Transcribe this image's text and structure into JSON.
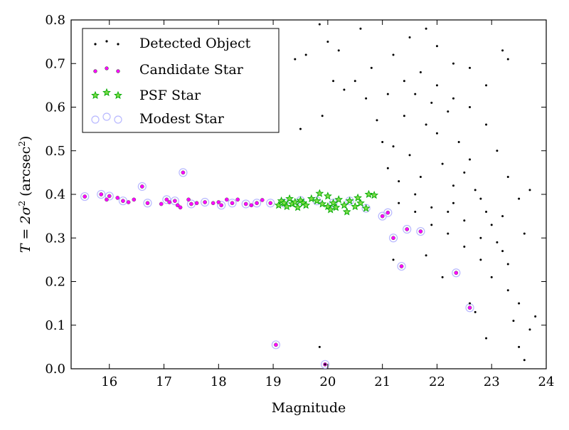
{
  "chart_data": {
    "type": "scatter",
    "xlabel": "Magnitude",
    "ylabel_prefix": "T = 2σ",
    "ylabel_sup": "2",
    "ylabel_open": " (arcsec",
    "ylabel_unit_sup": "2",
    "ylabel_close": ")",
    "xlim": [
      15.3,
      24.0
    ],
    "ylim": [
      0.0,
      0.8
    ],
    "x_ticks": [
      16,
      17,
      18,
      19,
      20,
      21,
      22,
      23,
      24
    ],
    "x_tick_labels": [
      "16",
      "17",
      "18",
      "19",
      "20",
      "21",
      "22",
      "23",
      "24"
    ],
    "y_ticks": [
      0.0,
      0.1,
      0.2,
      0.3,
      0.4,
      0.5,
      0.6,
      0.7,
      0.8
    ],
    "y_tick_labels": [
      "0.0",
      "0.1",
      "0.2",
      "0.3",
      "0.4",
      "0.5",
      "0.6",
      "0.7",
      "0.8"
    ],
    "grid": false,
    "legend_position": "top-left",
    "colors": {
      "detected": "#000000",
      "candidate": "#ff00ff",
      "psf": "#00aa00",
      "modest": "#b8b8ff"
    },
    "series": [
      {
        "name": "Detected Object",
        "marker": "dot",
        "points": [
          [
            19.85,
            0.79
          ],
          [
            20.0,
            0.75
          ],
          [
            20.2,
            0.73
          ],
          [
            19.6,
            0.72
          ],
          [
            19.4,
            0.71
          ],
          [
            20.1,
            0.66
          ],
          [
            19.9,
            0.58
          ],
          [
            19.5,
            0.55
          ],
          [
            20.3,
            0.64
          ],
          [
            20.6,
            0.78
          ],
          [
            20.8,
            0.69
          ],
          [
            20.7,
            0.62
          ],
          [
            20.9,
            0.57
          ],
          [
            20.5,
            0.66
          ],
          [
            19.85,
            0.05
          ],
          [
            19.95,
            0.01
          ],
          [
            21.0,
            0.52
          ],
          [
            21.1,
            0.46
          ],
          [
            21.2,
            0.51
          ],
          [
            21.3,
            0.43
          ],
          [
            21.4,
            0.58
          ],
          [
            21.5,
            0.49
          ],
          [
            21.6,
            0.63
          ],
          [
            21.7,
            0.44
          ],
          [
            21.8,
            0.56
          ],
          [
            21.9,
            0.61
          ],
          [
            22.0,
            0.54
          ],
          [
            22.1,
            0.47
          ],
          [
            22.2,
            0.59
          ],
          [
            22.3,
            0.42
          ],
          [
            22.4,
            0.52
          ],
          [
            22.5,
            0.45
          ],
          [
            22.6,
            0.48
          ],
          [
            22.7,
            0.41
          ],
          [
            22.8,
            0.39
          ],
          [
            22.9,
            0.36
          ],
          [
            23.0,
            0.33
          ],
          [
            23.1,
            0.29
          ],
          [
            23.2,
            0.27
          ],
          [
            23.3,
            0.24
          ],
          [
            21.2,
            0.72
          ],
          [
            21.5,
            0.76
          ],
          [
            21.8,
            0.78
          ],
          [
            22.0,
            0.74
          ],
          [
            22.3,
            0.7
          ],
          [
            22.6,
            0.69
          ],
          [
            22.9,
            0.65
          ],
          [
            23.2,
            0.73
          ],
          [
            23.3,
            0.71
          ],
          [
            21.6,
            0.36
          ],
          [
            21.9,
            0.33
          ],
          [
            22.2,
            0.31
          ],
          [
            22.5,
            0.28
          ],
          [
            22.8,
            0.25
          ],
          [
            23.0,
            0.21
          ],
          [
            23.3,
            0.18
          ],
          [
            23.5,
            0.15
          ],
          [
            23.4,
            0.11
          ],
          [
            23.6,
            0.02
          ],
          [
            23.5,
            0.05
          ],
          [
            22.9,
            0.07
          ],
          [
            23.8,
            0.12
          ],
          [
            23.7,
            0.09
          ],
          [
            22.7,
            0.13
          ],
          [
            21.3,
            0.38
          ],
          [
            21.6,
            0.4
          ],
          [
            21.9,
            0.37
          ],
          [
            22.2,
            0.36
          ],
          [
            22.5,
            0.34
          ],
          [
            22.8,
            0.3
          ],
          [
            21.1,
            0.63
          ],
          [
            21.4,
            0.66
          ],
          [
            21.7,
            0.68
          ],
          [
            22.0,
            0.65
          ],
          [
            22.3,
            0.62
          ],
          [
            22.6,
            0.6
          ],
          [
            22.9,
            0.56
          ],
          [
            23.1,
            0.5
          ],
          [
            23.3,
            0.44
          ],
          [
            23.5,
            0.39
          ],
          [
            23.6,
            0.31
          ],
          [
            23.7,
            0.41
          ],
          [
            21.2,
            0.25
          ],
          [
            22.1,
            0.21
          ],
          [
            22.3,
            0.38
          ],
          [
            21.8,
            0.26
          ],
          [
            23.2,
            0.35
          ],
          [
            22.6,
            0.15
          ]
        ]
      },
      {
        "name": "Candidate Star",
        "marker": "circle",
        "points": [
          [
            15.55,
            0.395
          ],
          [
            15.85,
            0.4
          ],
          [
            15.95,
            0.388
          ],
          [
            16.0,
            0.396
          ],
          [
            16.15,
            0.392
          ],
          [
            16.25,
            0.385
          ],
          [
            16.35,
            0.382
          ],
          [
            16.45,
            0.388
          ],
          [
            16.6,
            0.418
          ],
          [
            16.7,
            0.38
          ],
          [
            16.95,
            0.378
          ],
          [
            17.05,
            0.388
          ],
          [
            17.1,
            0.382
          ],
          [
            17.2,
            0.385
          ],
          [
            17.25,
            0.375
          ],
          [
            17.3,
            0.37
          ],
          [
            17.35,
            0.45
          ],
          [
            17.45,
            0.388
          ],
          [
            17.5,
            0.378
          ],
          [
            17.6,
            0.38
          ],
          [
            17.75,
            0.382
          ],
          [
            17.9,
            0.38
          ],
          [
            18.0,
            0.382
          ],
          [
            18.05,
            0.375
          ],
          [
            18.15,
            0.388
          ],
          [
            18.25,
            0.38
          ],
          [
            18.35,
            0.388
          ],
          [
            18.5,
            0.378
          ],
          [
            18.6,
            0.375
          ],
          [
            18.7,
            0.38
          ],
          [
            18.8,
            0.387
          ],
          [
            18.95,
            0.38
          ],
          [
            19.05,
            0.055
          ],
          [
            21.0,
            0.35
          ],
          [
            21.1,
            0.358
          ],
          [
            21.2,
            0.3
          ],
          [
            21.35,
            0.235
          ],
          [
            21.45,
            0.32
          ],
          [
            21.7,
            0.315
          ],
          [
            22.35,
            0.22
          ],
          [
            22.6,
            0.14
          ],
          [
            19.95,
            0.01
          ]
        ]
      },
      {
        "name": "PSF Star",
        "marker": "star",
        "points": [
          [
            19.1,
            0.375
          ],
          [
            19.15,
            0.385
          ],
          [
            19.2,
            0.38
          ],
          [
            19.25,
            0.372
          ],
          [
            19.3,
            0.39
          ],
          [
            19.35,
            0.378
          ],
          [
            19.4,
            0.382
          ],
          [
            19.45,
            0.37
          ],
          [
            19.5,
            0.386
          ],
          [
            19.55,
            0.38
          ],
          [
            19.6,
            0.375
          ],
          [
            19.7,
            0.39
          ],
          [
            19.8,
            0.385
          ],
          [
            19.85,
            0.402
          ],
          [
            19.9,
            0.378
          ],
          [
            20.0,
            0.372
          ],
          [
            20.05,
            0.365
          ],
          [
            20.1,
            0.38
          ],
          [
            20.15,
            0.37
          ],
          [
            20.2,
            0.388
          ],
          [
            20.3,
            0.375
          ],
          [
            20.35,
            0.36
          ],
          [
            20.4,
            0.385
          ],
          [
            20.5,
            0.372
          ],
          [
            20.55,
            0.392
          ],
          [
            20.6,
            0.38
          ],
          [
            20.7,
            0.368
          ],
          [
            20.75,
            0.4
          ],
          [
            20.85,
            0.398
          ],
          [
            20.0,
            0.396
          ]
        ]
      },
      {
        "name": "Modest Star",
        "marker": "ring",
        "points": [
          [
            15.55,
            0.395
          ],
          [
            15.85,
            0.4
          ],
          [
            16.0,
            0.396
          ],
          [
            16.25,
            0.385
          ],
          [
            16.6,
            0.418
          ],
          [
            16.7,
            0.38
          ],
          [
            17.05,
            0.388
          ],
          [
            17.2,
            0.385
          ],
          [
            17.35,
            0.45
          ],
          [
            17.5,
            0.378
          ],
          [
            17.75,
            0.382
          ],
          [
            18.05,
            0.375
          ],
          [
            18.25,
            0.38
          ],
          [
            18.5,
            0.378
          ],
          [
            18.7,
            0.38
          ],
          [
            18.95,
            0.38
          ],
          [
            19.05,
            0.055
          ],
          [
            19.2,
            0.38
          ],
          [
            19.5,
            0.386
          ],
          [
            19.8,
            0.385
          ],
          [
            20.1,
            0.38
          ],
          [
            20.4,
            0.385
          ],
          [
            20.7,
            0.368
          ],
          [
            21.0,
            0.35
          ],
          [
            21.1,
            0.358
          ],
          [
            21.2,
            0.3
          ],
          [
            21.35,
            0.235
          ],
          [
            21.45,
            0.32
          ],
          [
            21.7,
            0.315
          ],
          [
            22.35,
            0.22
          ],
          [
            22.6,
            0.14
          ],
          [
            19.95,
            0.01
          ]
        ]
      }
    ]
  }
}
